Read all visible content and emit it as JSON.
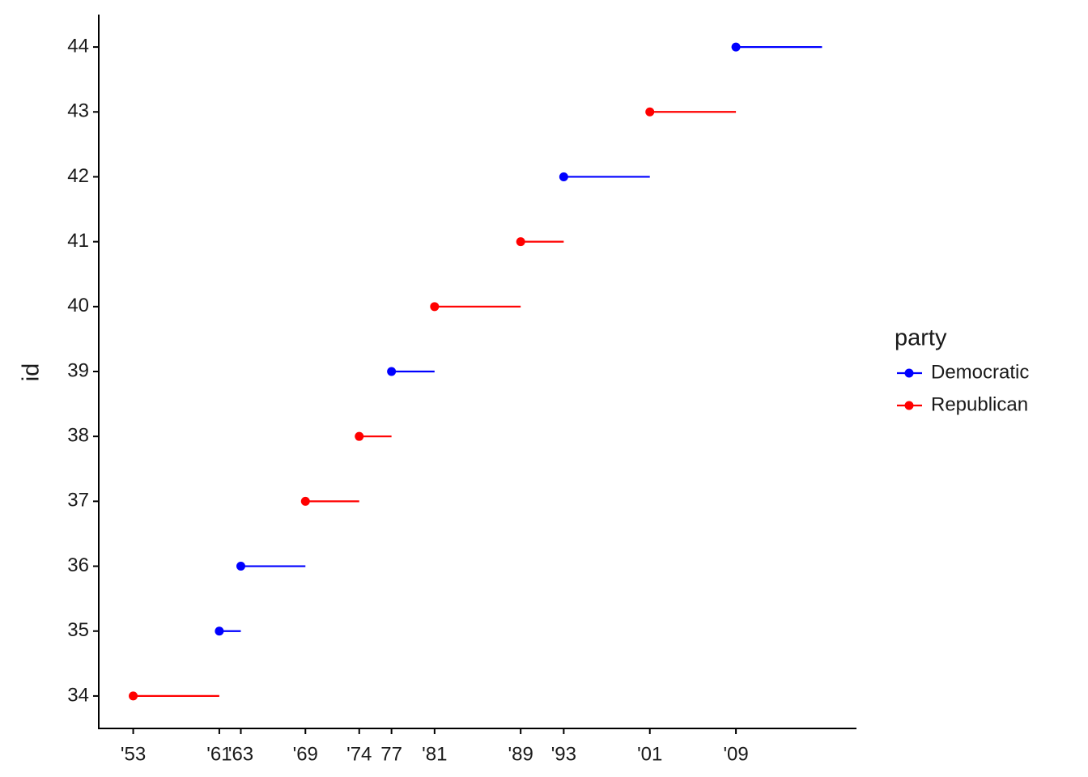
{
  "chart_data": {
    "type": "segment",
    "y_label": "id",
    "legend_title": "party",
    "legend_position": "right",
    "xlim": [
      1949.8,
      2020.2
    ],
    "ylim": [
      33.5,
      44.5
    ],
    "xticks": [
      {
        "value": 1953,
        "label": "'53"
      },
      {
        "value": 1961,
        "label": "'61"
      },
      {
        "value": 1963,
        "label": "'63"
      },
      {
        "value": 1969,
        "label": "'69"
      },
      {
        "value": 1974,
        "label": "'74"
      },
      {
        "value": 1977,
        "label": "77"
      },
      {
        "value": 1981,
        "label": "'81"
      },
      {
        "value": 1989,
        "label": "'89"
      },
      {
        "value": 1993,
        "label": "'93"
      },
      {
        "value": 2001,
        "label": "'01"
      },
      {
        "value": 2009,
        "label": "'09"
      }
    ],
    "yticks": [
      34,
      35,
      36,
      37,
      38,
      39,
      40,
      41,
      42,
      43,
      44
    ],
    "series": [
      {
        "name": "Democratic",
        "color": "#0000ff",
        "id": [
          35,
          36,
          39,
          42,
          44
        ],
        "start": [
          1961,
          1963,
          1977,
          1993,
          2009
        ],
        "end": [
          1963,
          1969,
          1981,
          2001,
          2017
        ]
      },
      {
        "name": "Republican",
        "color": "#ff0000",
        "id": [
          34,
          37,
          38,
          40,
          41,
          43
        ],
        "start": [
          1953,
          1969,
          1974,
          1981,
          1989,
          2001
        ],
        "end": [
          1961,
          1974,
          1977,
          1989,
          1993,
          2009
        ]
      }
    ]
  }
}
